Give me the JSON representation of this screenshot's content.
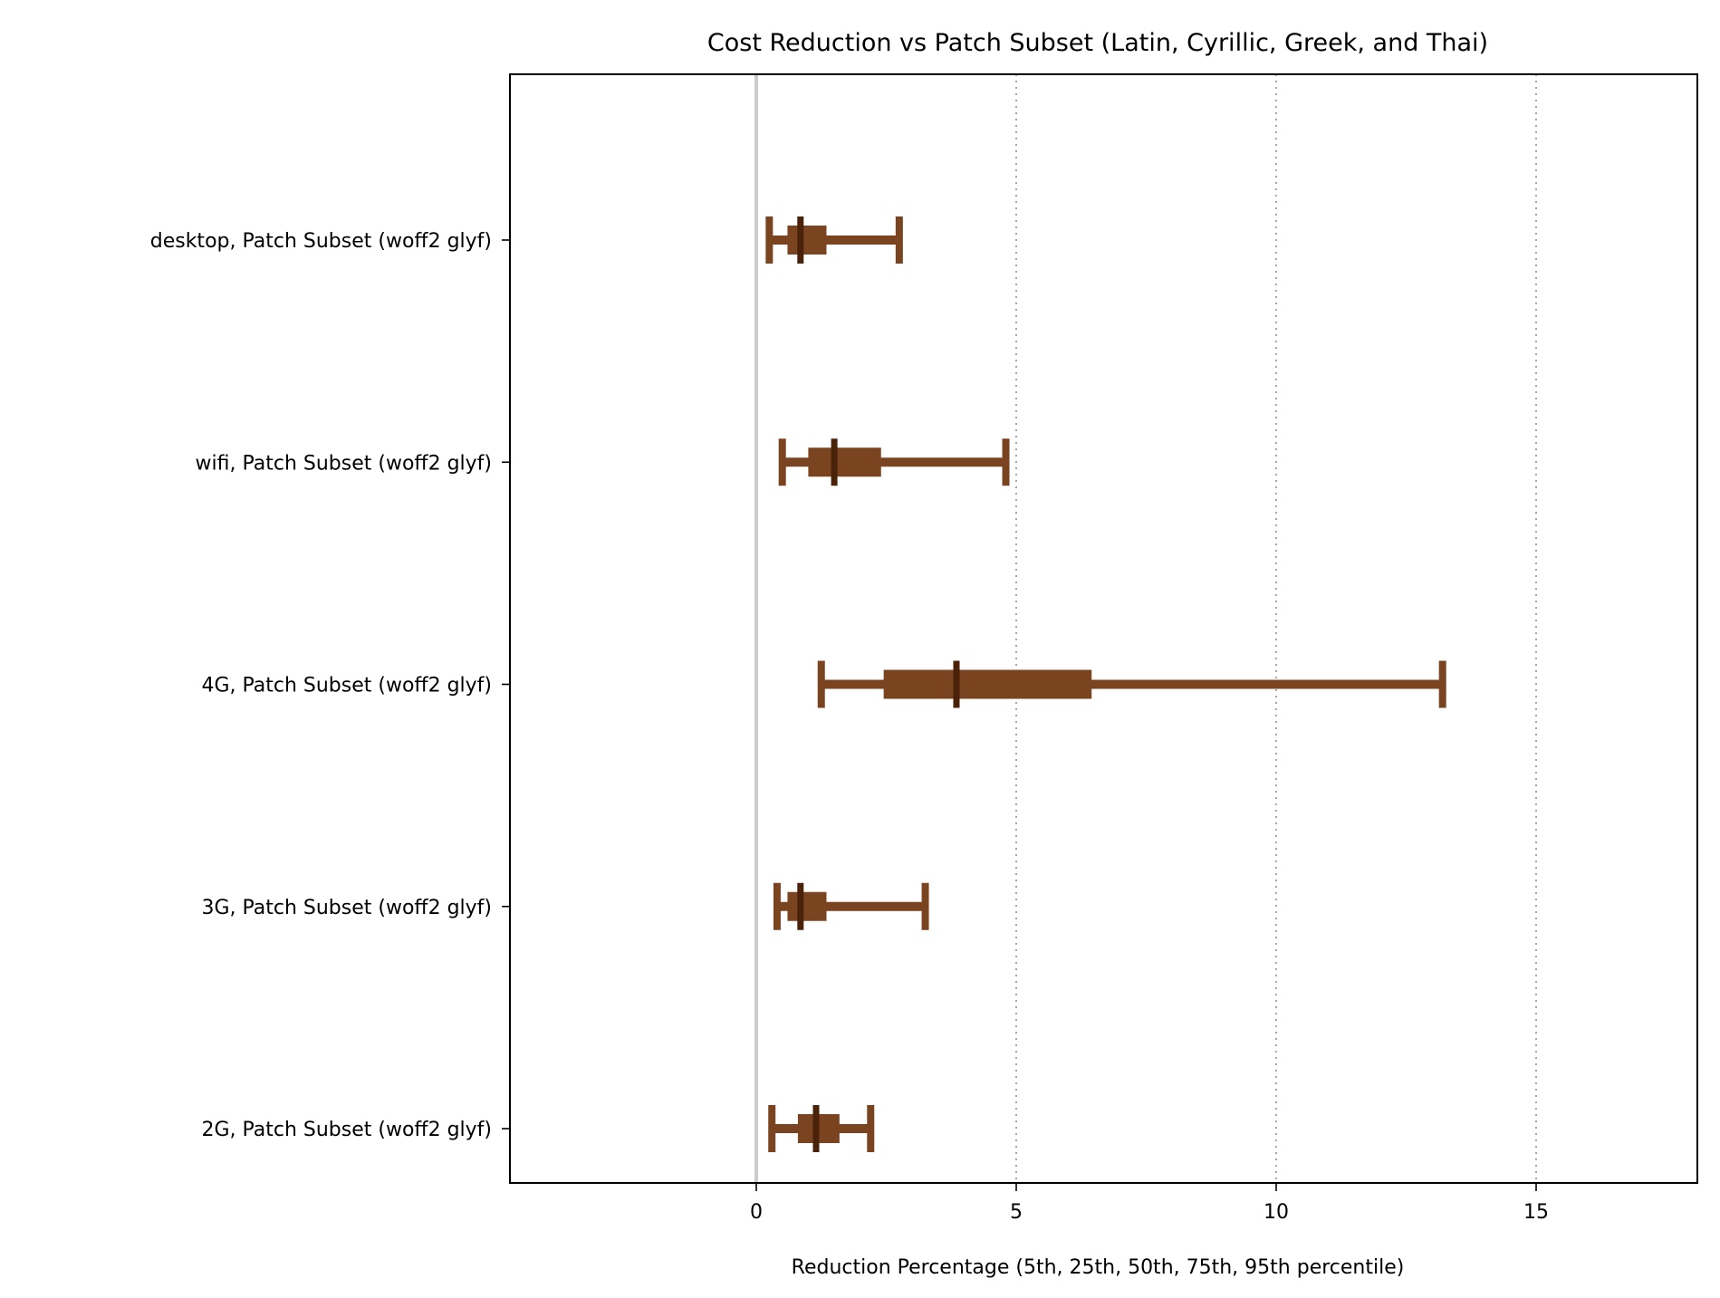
{
  "chart_data": {
    "type": "box-range",
    "title": "Cost Reduction vs Patch Subset (Latin, Cyrillic, Greek, and Thai)",
    "xlabel": "Reduction Percentage  (5th, 25th, 50th, 75th, 95th percentile)",
    "ylabel": "",
    "xlim": [
      -4.7,
      18.1
    ],
    "xticks": [
      0,
      5,
      10,
      15
    ],
    "grid": "vertical dotted at 5, 10, 15; solid reference line at 0",
    "colors": {
      "series": "#7b4421",
      "median": "#4a2109",
      "zero_line": "#cccccc",
      "grid": "#a6a6a6"
    },
    "categories": [
      "desktop, Patch Subset (woff2 glyf)",
      "wifi, Patch Subset (woff2 glyf)",
      "4G, Patch Subset (woff2 glyf)",
      "3G, Patch Subset (woff2 glyf)",
      "2G, Patch Subset (woff2 glyf)"
    ],
    "percentiles": [
      {
        "p5": 0.25,
        "p25": 0.6,
        "p50": 0.85,
        "p75": 1.35,
        "p95": 2.75
      },
      {
        "p5": 0.5,
        "p25": 1.0,
        "p50": 1.5,
        "p75": 2.4,
        "p95": 4.8
      },
      {
        "p5": 1.25,
        "p25": 2.45,
        "p50": 3.85,
        "p75": 6.45,
        "p95": 13.2
      },
      {
        "p5": 0.4,
        "p25": 0.6,
        "p50": 0.85,
        "p75": 1.35,
        "p95": 3.25
      },
      {
        "p5": 0.3,
        "p25": 0.8,
        "p50": 1.15,
        "p75": 1.6,
        "p95": 2.2
      }
    ]
  }
}
